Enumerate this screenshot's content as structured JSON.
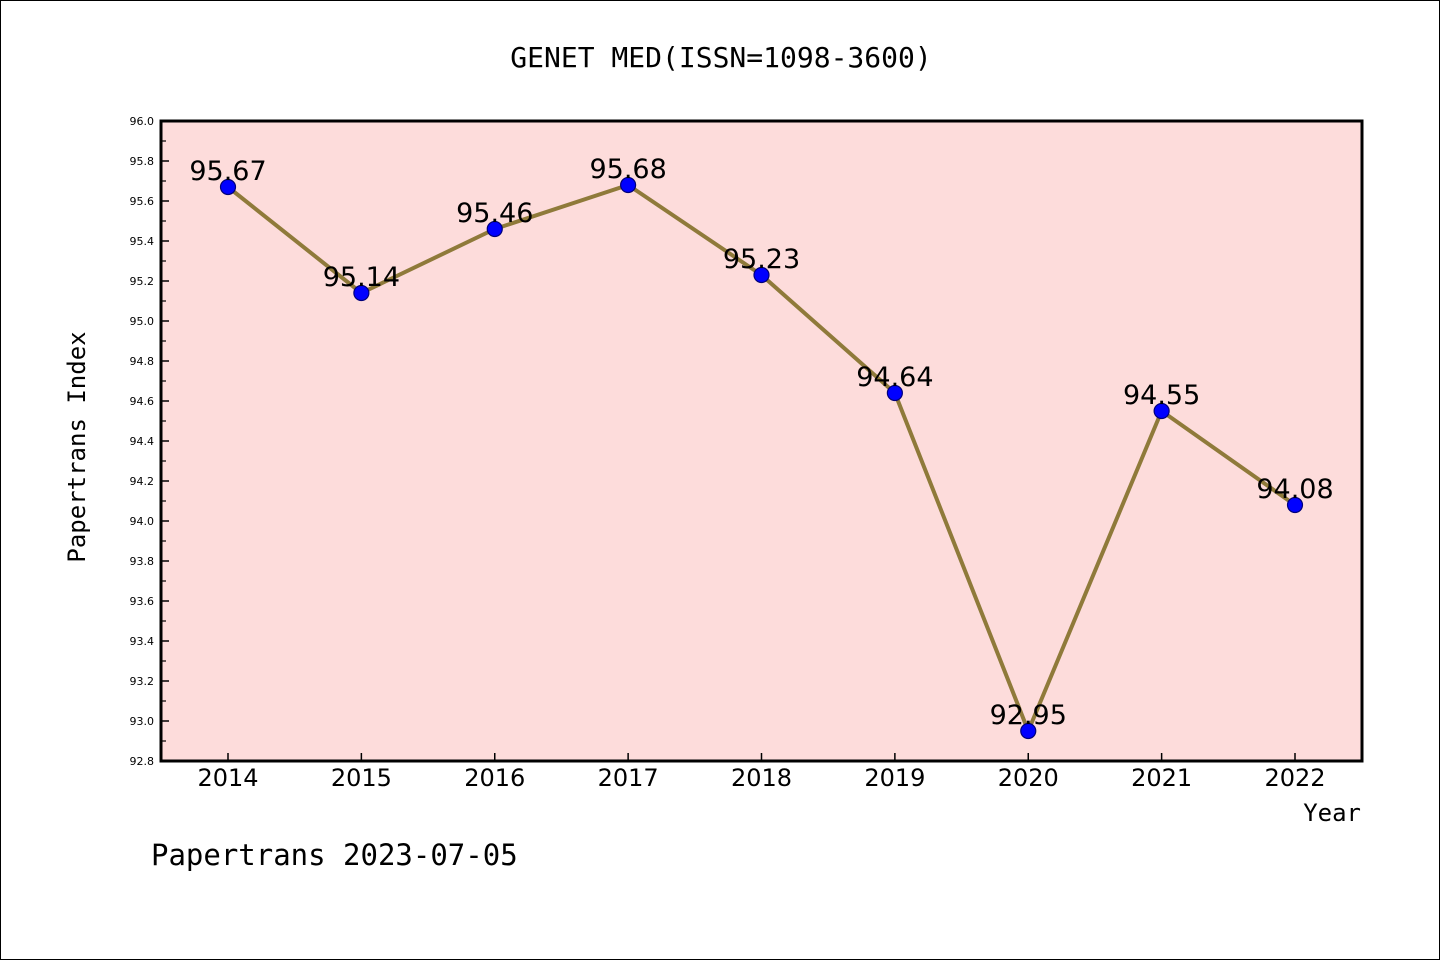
{
  "chart_data": {
    "type": "line",
    "title": "GENET MED(ISSN=1098-3600)",
    "xlabel": "Year",
    "ylabel": "Papertrans Index",
    "categories": [
      "2014",
      "2015",
      "2016",
      "2017",
      "2018",
      "2019",
      "2020",
      "2021",
      "2022"
    ],
    "series": [
      {
        "values": [
          95.67,
          95.14,
          95.46,
          95.68,
          95.23,
          94.64,
          92.95,
          94.55,
          94.08
        ],
        "labels": [
          "95.67",
          "95.14",
          "95.46",
          "95.68",
          "95.23",
          "94.64",
          "92.95",
          "94.55",
          "94.08"
        ]
      }
    ],
    "ylim": [
      92.8,
      96.0
    ],
    "yticks": [
      "92.8",
      "93.0",
      "93.2",
      "93.4",
      "93.6",
      "93.8",
      "94.0",
      "94.2",
      "94.4",
      "94.6",
      "94.8",
      "95.0",
      "95.2",
      "95.4",
      "95.6",
      "95.8",
      "96.0"
    ],
    "grid": false,
    "colors": {
      "plot_background": "#fddcdb",
      "line": "#8f7a3a",
      "marker": "#0000ff"
    }
  },
  "footer": "Papertrans 2023-07-05"
}
